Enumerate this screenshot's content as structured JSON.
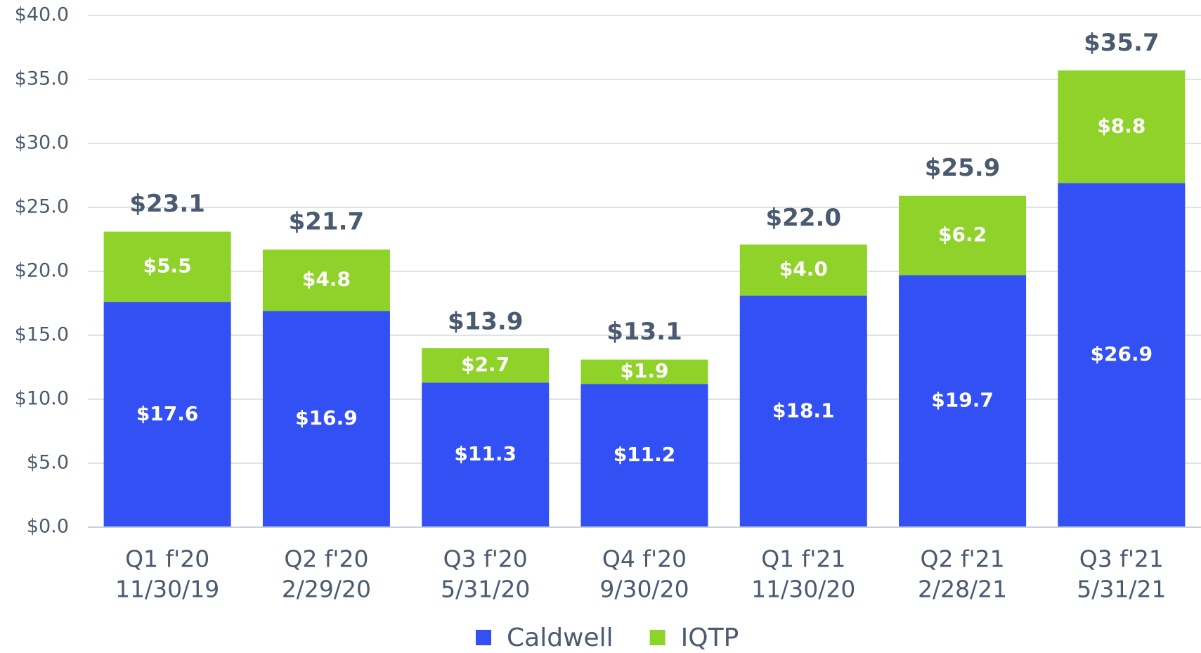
{
  "chart_data": {
    "type": "stacked_bar",
    "categories": [
      [
        "Q1 f'20",
        "11/30/19"
      ],
      [
        "Q2 f'20",
        "2/29/20"
      ],
      [
        "Q3 f'20",
        "5/31/20"
      ],
      [
        "Q4 f'20",
        "9/30/20"
      ],
      [
        "Q1 f'21",
        "11/30/20"
      ],
      [
        "Q2 f'21",
        "2/28/21"
      ],
      [
        "Q3 f'21",
        "5/31/21"
      ]
    ],
    "series": [
      {
        "name": "Caldwell",
        "color": "#3350f5",
        "values": [
          17.6,
          16.9,
          11.3,
          11.2,
          18.1,
          19.7,
          26.9
        ],
        "value_labels": [
          "$17.6",
          "$16.9",
          "$11.3",
          "$11.2",
          "$18.1",
          "$19.7",
          "$26.9"
        ]
      },
      {
        "name": "IQTP",
        "color": "#8fd22a",
        "values": [
          5.5,
          4.8,
          2.7,
          1.9,
          4.0,
          6.2,
          8.8
        ],
        "value_labels": [
          "$5.5",
          "$4.8",
          "$2.7",
          "$1.9",
          "$4.0",
          "$6.2",
          "$8.8"
        ]
      }
    ],
    "totals": [
      23.1,
      21.7,
      13.9,
      13.1,
      22.0,
      25.9,
      35.7
    ],
    "total_labels": [
      "$23.1",
      "$21.7",
      "$13.9",
      "$13.1",
      "$22.0",
      "$25.9",
      "$35.7"
    ],
    "ylim": [
      0,
      40
    ],
    "yticks": [
      {
        "value": 0,
        "label": "$0.0"
      },
      {
        "value": 5,
        "label": "$5.0"
      },
      {
        "value": 10,
        "label": "$10.0"
      },
      {
        "value": 15,
        "label": "$15.0"
      },
      {
        "value": 20,
        "label": "$20.0"
      },
      {
        "value": 25,
        "label": "$25.0"
      },
      {
        "value": 30,
        "label": "$30.0"
      },
      {
        "value": 35,
        "label": "$35.0"
      },
      {
        "value": 40,
        "label": "$40.0"
      }
    ],
    "grid": true
  }
}
